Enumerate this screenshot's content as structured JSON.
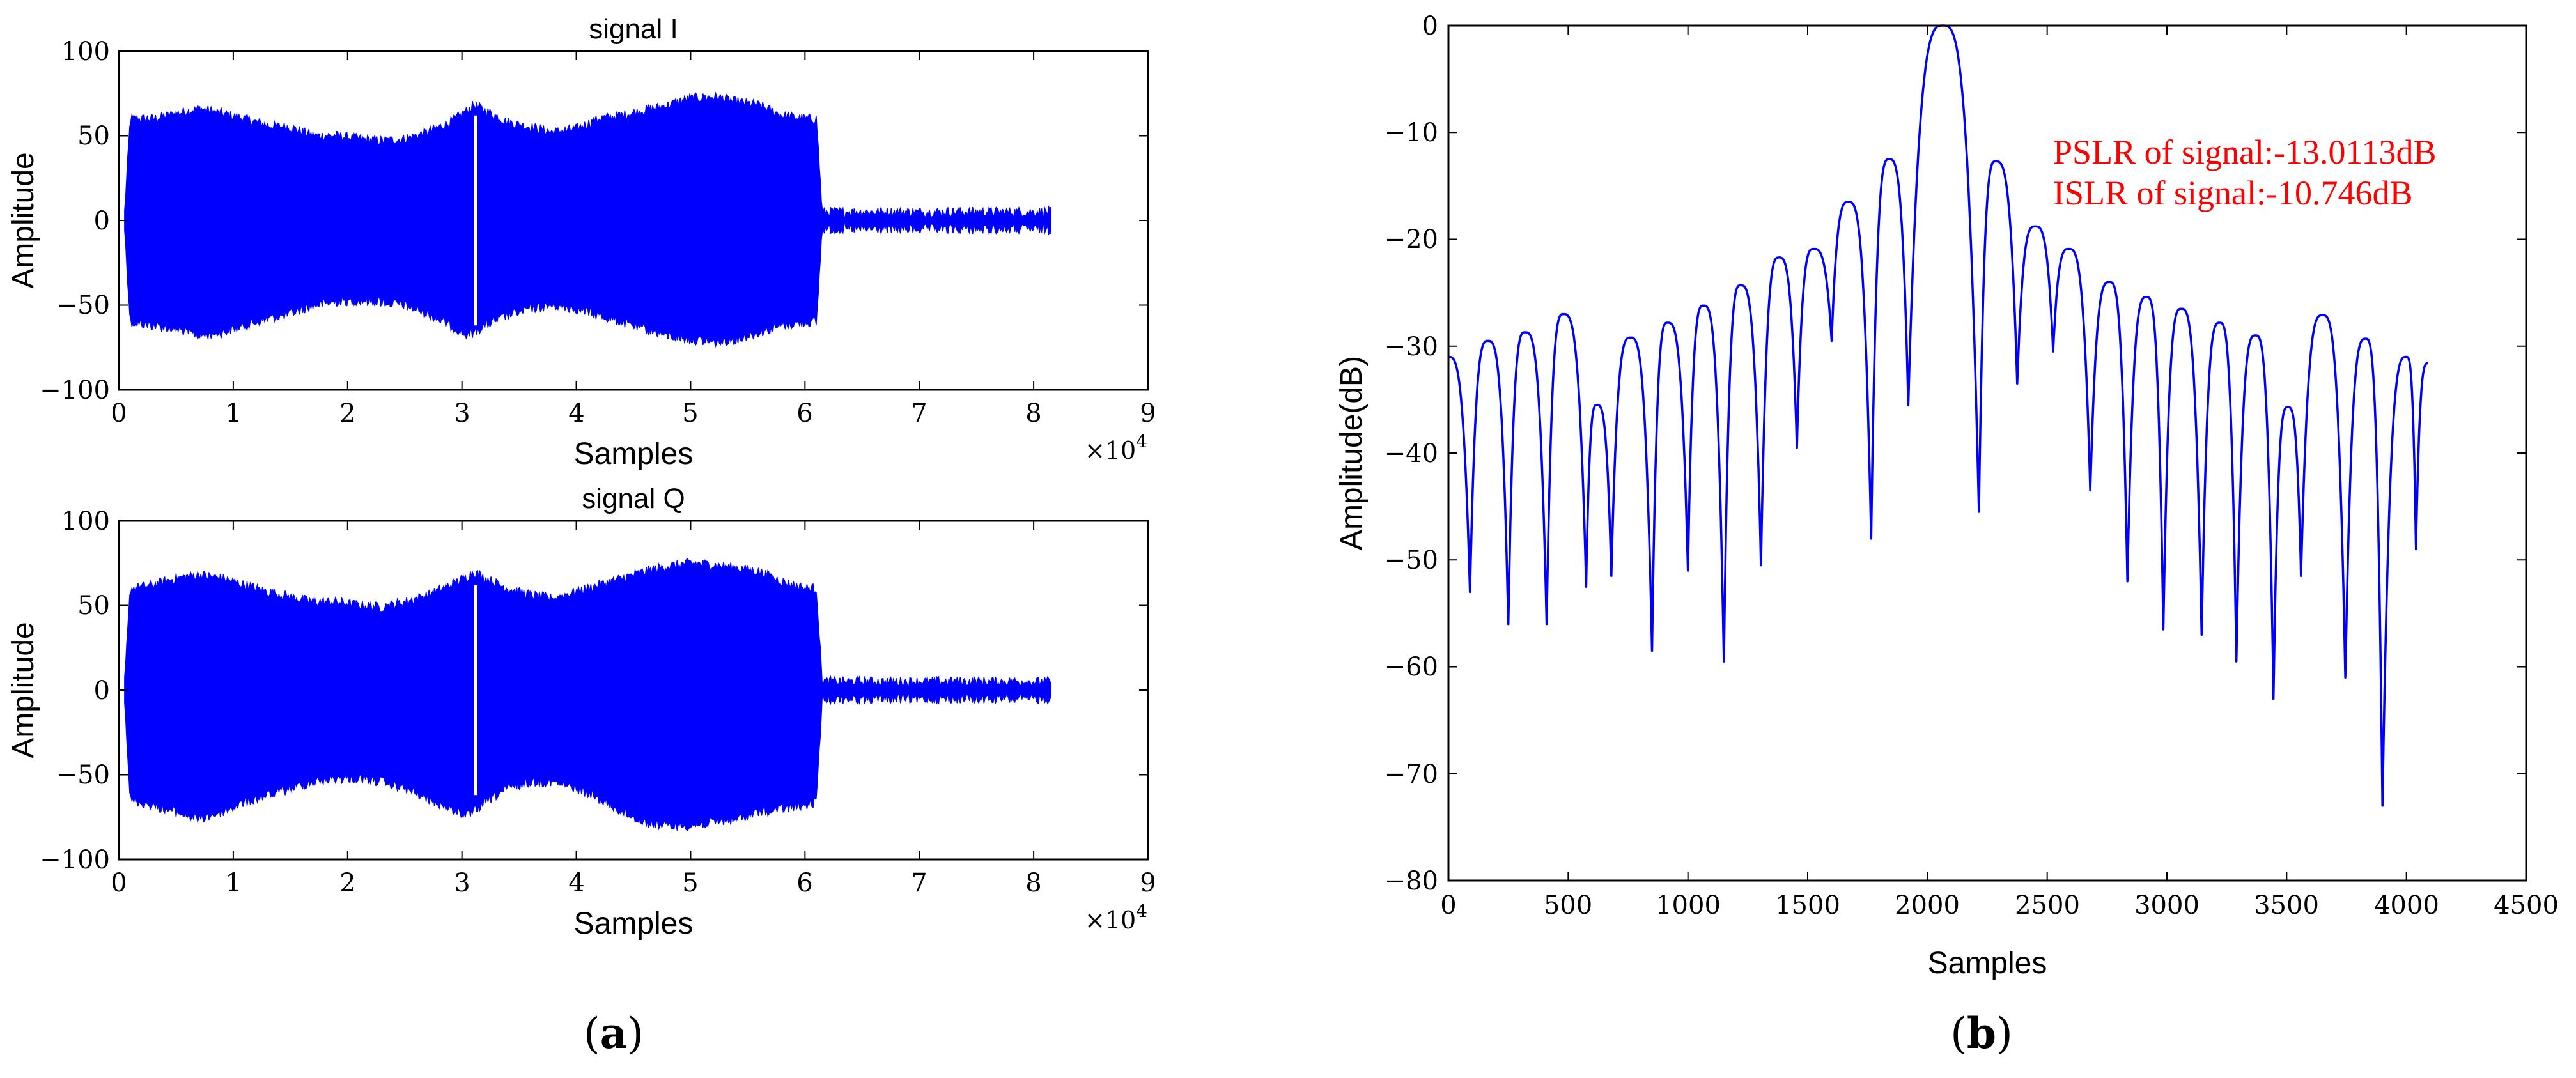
{
  "colors": {
    "series": "#0000ff",
    "annotation": "#ff0000",
    "axes": "#000000"
  },
  "panel_a": {
    "caption_letter": "a",
    "top": {
      "title": "signal I",
      "xlabel": "Samples",
      "ylabel": "Amplitude",
      "xticks": [
        "0",
        "1",
        "2",
        "3",
        "4",
        "5",
        "6",
        "7",
        "8",
        "9"
      ],
      "yticks": [
        "100",
        "50",
        "0",
        "−50",
        "−100"
      ],
      "multiplier_base": "×10",
      "multiplier_exp": "4"
    },
    "bottom": {
      "title": "signal Q",
      "xlabel": "Samples",
      "ylabel": "Amplitude",
      "xticks": [
        "0",
        "1",
        "2",
        "3",
        "4",
        "5",
        "6",
        "7",
        "8",
        "9"
      ],
      "yticks": [
        "100",
        "50",
        "0",
        "−50",
        "−100"
      ],
      "multiplier_base": "×10",
      "multiplier_exp": "4"
    }
  },
  "panel_b": {
    "caption_letter": "b",
    "xlabel": "Samples",
    "ylabel": "Amplitude(dB)",
    "xticks": [
      "0",
      "500",
      "1000",
      "1500",
      "2000",
      "2500",
      "3000",
      "3500",
      "4000",
      "4500"
    ],
    "yticks": [
      "0",
      "−10",
      "−20",
      "−30",
      "−40",
      "−50",
      "−60",
      "−70",
      "−80"
    ],
    "annotation_pslr": "PSLR of signal:-13.0113dB",
    "annotation_islr": "ISLR of signal:-10.746dB"
  },
  "chart_data": [
    {
      "type": "area",
      "title": "signal I",
      "xlabel": "Samples",
      "ylabel": "Amplitude",
      "x_unit": "×10^4 samples",
      "xlim": [
        0,
        9
      ],
      "ylim": [
        -100,
        100
      ],
      "grid": false,
      "series": [
        {
          "upper_envelope": {
            "x": [
              0.05,
              0.1,
              0.3,
              0.5,
              0.7,
              0.9,
              1.1,
              1.3,
              1.5,
              1.7,
              1.9,
              2.1,
              2.3,
              2.5,
              2.7,
              2.9,
              3.05,
              3.1,
              3.2,
              3.4,
              3.6,
              3.8,
              4.0,
              4.2,
              4.4,
              4.6,
              4.8,
              5.0,
              5.2,
              5.4,
              5.6,
              5.8,
              6.0,
              6.1,
              6.15,
              7.0,
              8.15
            ],
            "y": [
              5,
              60,
              60,
              63,
              66,
              63,
              60,
              56,
              55,
              50,
              50,
              48,
              47,
              48,
              52,
              58,
              65,
              68,
              65,
              58,
              55,
              52,
              54,
              60,
              62,
              65,
              68,
              72,
              73,
              70,
              68,
              62,
              60,
              60,
              5,
              5,
              5
            ]
          },
          "lower_envelope": {
            "x": [
              0.05,
              0.1,
              0.3,
              0.5,
              0.7,
              0.9,
              1.1,
              1.3,
              1.5,
              1.7,
              1.9,
              2.1,
              2.3,
              2.5,
              2.7,
              2.9,
              3.05,
              3.1,
              3.2,
              3.4,
              3.6,
              3.8,
              4.0,
              4.2,
              4.4,
              4.6,
              4.8,
              5.0,
              5.2,
              5.4,
              5.6,
              5.8,
              6.0,
              6.1,
              6.15,
              7.0,
              8.15
            ],
            "y": [
              -5,
              -60,
              -62,
              -64,
              -68,
              -66,
              -62,
              -58,
              -55,
              -50,
              -48,
              -47,
              -48,
              -50,
              -55,
              -62,
              -68,
              -66,
              -62,
              -56,
              -52,
              -50,
              -52,
              -56,
              -60,
              -64,
              -68,
              -70,
              -72,
              -70,
              -66,
              -62,
              -60,
              -60,
              -5,
              -5,
              -5
            ]
          }
        }
      ]
    },
    {
      "type": "area",
      "title": "signal Q",
      "xlabel": "Samples",
      "ylabel": "Amplitude",
      "x_unit": "×10^4 samples",
      "xlim": [
        0,
        9
      ],
      "ylim": [
        -100,
        100
      ],
      "grid": false,
      "series": [
        {
          "upper_envelope": {
            "x": [
              0.05,
              0.1,
              0.3,
              0.5,
              0.7,
              0.9,
              1.1,
              1.3,
              1.5,
              1.7,
              1.9,
              2.1,
              2.3,
              2.5,
              2.7,
              2.9,
              3.05,
              3.1,
              3.2,
              3.4,
              3.6,
              3.8,
              4.0,
              4.2,
              4.4,
              4.6,
              4.8,
              5.0,
              5.2,
              5.4,
              5.6,
              5.8,
              6.0,
              6.1,
              6.15,
              7.0,
              8.15
            ],
            "y": [
              5,
              60,
              62,
              66,
              68,
              66,
              62,
              58,
              55,
              52,
              52,
              50,
              49,
              52,
              56,
              62,
              67,
              70,
              66,
              60,
              56,
              54,
              58,
              62,
              66,
              70,
              73,
              75,
              74,
              72,
              70,
              64,
              60,
              60,
              5,
              5,
              5
            ]
          },
          "lower_envelope": {
            "x": [
              0.05,
              0.1,
              0.3,
              0.5,
              0.7,
              0.9,
              1.1,
              1.3,
              1.5,
              1.7,
              1.9,
              2.1,
              2.3,
              2.5,
              2.7,
              2.9,
              3.05,
              3.1,
              3.2,
              3.4,
              3.6,
              3.8,
              4.0,
              4.2,
              4.4,
              4.6,
              4.8,
              5.0,
              5.2,
              5.4,
              5.6,
              5.8,
              6.0,
              6.1,
              6.15,
              7.0,
              8.15
            ],
            "y": [
              -5,
              -65,
              -68,
              -72,
              -76,
              -72,
              -66,
              -62,
              -58,
              -54,
              -52,
              -52,
              -54,
              -58,
              -64,
              -70,
              -74,
              -72,
              -66,
              -58,
              -54,
              -54,
              -58,
              -64,
              -72,
              -78,
              -80,
              -80,
              -78,
              -76,
              -72,
              -70,
              -68,
              -66,
              -5,
              -5,
              -5
            ]
          }
        }
      ]
    },
    {
      "type": "line",
      "xlabel": "Samples",
      "ylabel": "Amplitude(dB)",
      "xlim": [
        0,
        4500
      ],
      "ylim": [
        -80,
        0
      ],
      "grid": false,
      "annotations": [
        "PSLR of signal:-13.0113dB",
        "ISLR of signal:-10.746dB"
      ],
      "series": [
        {
          "peaks": [
            {
              "x": 0,
              "y": -31
            },
            {
              "x": 165,
              "y": -29.5
            },
            {
              "x": 320,
              "y": -28.7
            },
            {
              "x": 480,
              "y": -27
            },
            {
              "x": 620,
              "y": -35.5
            },
            {
              "x": 760,
              "y": -29.2
            },
            {
              "x": 915,
              "y": -27.8
            },
            {
              "x": 1065,
              "y": -26.2
            },
            {
              "x": 1220,
              "y": -24.3
            },
            {
              "x": 1380,
              "y": -21.7
            },
            {
              "x": 1525,
              "y": -20.9
            },
            {
              "x": 1670,
              "y": -16.5
            },
            {
              "x": 1840,
              "y": -12.5
            },
            {
              "x": 2065,
              "y": 0
            },
            {
              "x": 2285,
              "y": -12.7
            },
            {
              "x": 2450,
              "y": -18.8
            },
            {
              "x": 2590,
              "y": -20.9
            },
            {
              "x": 2760,
              "y": -24
            },
            {
              "x": 2915,
              "y": -25.4
            },
            {
              "x": 3060,
              "y": -26.5
            },
            {
              "x": 3220,
              "y": -27.8
            },
            {
              "x": 3370,
              "y": -29
            },
            {
              "x": 3505,
              "y": -35.7
            },
            {
              "x": 3650,
              "y": -27.1
            },
            {
              "x": 3830,
              "y": -29.3
            },
            {
              "x": 4000,
              "y": -31
            },
            {
              "x": 4090,
              "y": -31.6
            }
          ],
          "nulls": [
            {
              "x": 90,
              "y": -53
            },
            {
              "x": 250,
              "y": -56
            },
            {
              "x": 410,
              "y": -56
            },
            {
              "x": 575,
              "y": -52.5
            },
            {
              "x": 680,
              "y": -51.5
            },
            {
              "x": 850,
              "y": -58.5
            },
            {
              "x": 1000,
              "y": -51
            },
            {
              "x": 1150,
              "y": -59.5
            },
            {
              "x": 1305,
              "y": -50.5
            },
            {
              "x": 1455,
              "y": -39.5
            },
            {
              "x": 1600,
              "y": -29.5
            },
            {
              "x": 1765,
              "y": -48
            },
            {
              "x": 1920,
              "y": -35.5
            },
            {
              "x": 2215,
              "y": -45.5
            },
            {
              "x": 2375,
              "y": -33.5
            },
            {
              "x": 2525,
              "y": -30.5
            },
            {
              "x": 2680,
              "y": -43.5
            },
            {
              "x": 2835,
              "y": -52
            },
            {
              "x": 2985,
              "y": -56.5
            },
            {
              "x": 3145,
              "y": -57
            },
            {
              "x": 3290,
              "y": -59.5
            },
            {
              "x": 3445,
              "y": -63
            },
            {
              "x": 3560,
              "y": -51.5
            },
            {
              "x": 3745,
              "y": -61
            },
            {
              "x": 3900,
              "y": -73
            },
            {
              "x": 4040,
              "y": -49
            }
          ]
        }
      ]
    }
  ]
}
